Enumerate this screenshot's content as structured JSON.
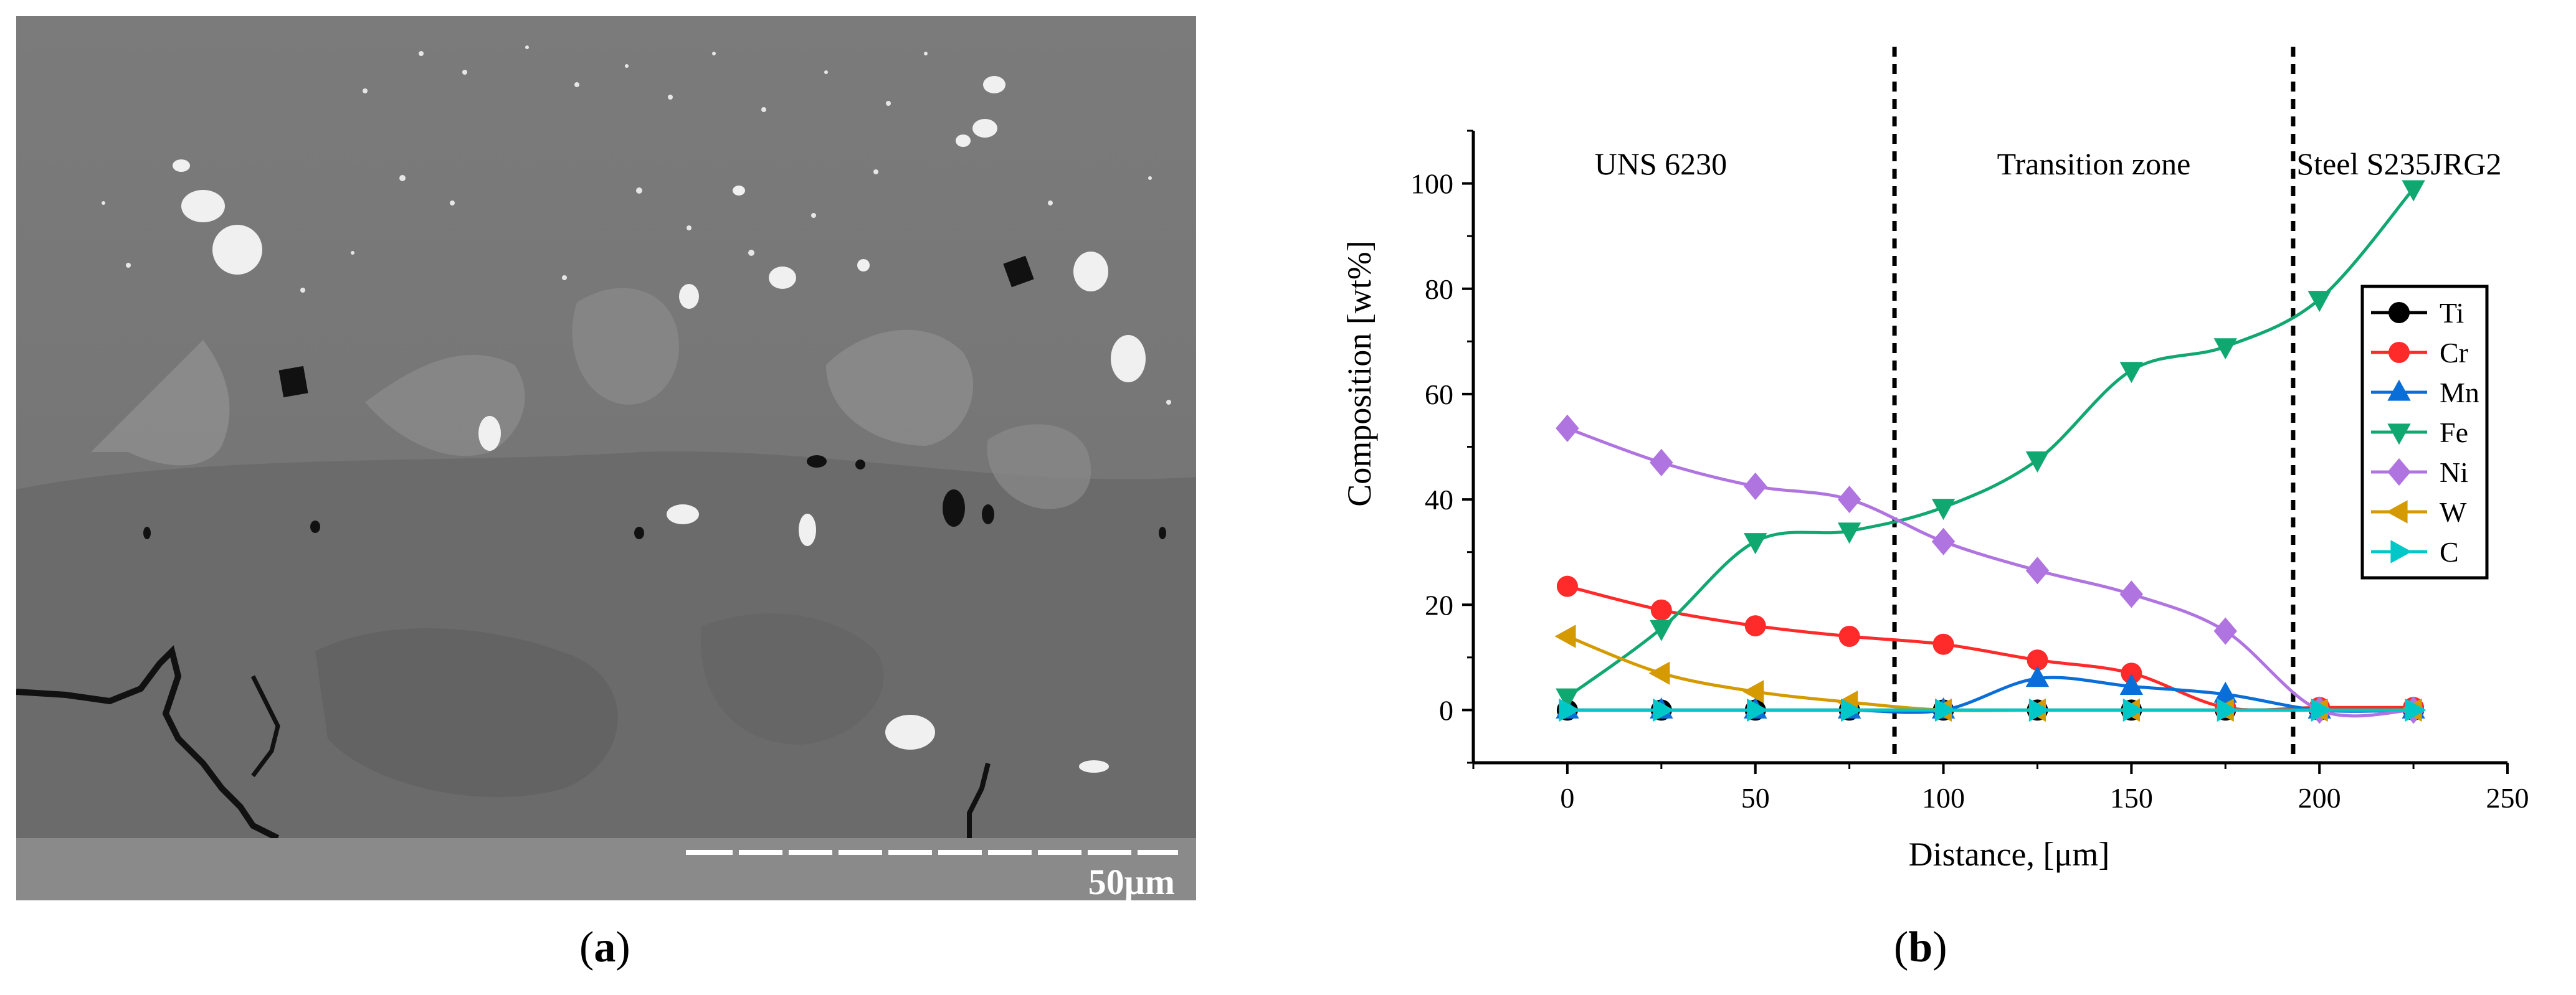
{
  "figure": {
    "panel_a_label": "a",
    "panel_b_label": "b"
  },
  "micrograph": {
    "scale_bar_label": "50μm",
    "description_colors": {
      "background": "#7a7a7a",
      "lower_zone": "#6c6c6c",
      "bar_strip": "#8c8c8c",
      "particles": "#f2f2f2",
      "pores": "#111111"
    }
  },
  "chart_data": {
    "type": "line",
    "xlabel": "Distance, [μm]",
    "ylabel": "Composition [wt%]",
    "xlim": [
      -25,
      250
    ],
    "ylim": [
      -10,
      110
    ],
    "xticks": [
      0,
      50,
      100,
      150,
      200,
      250
    ],
    "yticks": [
      0,
      20,
      40,
      60,
      80,
      100
    ],
    "zone_boundaries": [
      87,
      193
    ],
    "annotations": [
      "UNS 6230",
      "Transition zone",
      "Steel S235JRG2"
    ],
    "legend_position": "right",
    "x": [
      0,
      25,
      50,
      75,
      100,
      125,
      150,
      175,
      200,
      225
    ],
    "series": [
      {
        "name": "Ti",
        "color": "#000000",
        "marker": "circle",
        "values": [
          0,
          0,
          0,
          0,
          0,
          0,
          0,
          0,
          0,
          0
        ]
      },
      {
        "name": "Cr",
        "color": "#ff2a2a",
        "marker": "circle",
        "values": [
          23.5,
          19,
          16,
          14,
          12.5,
          9.5,
          7,
          0.5,
          0.5,
          0.5
        ]
      },
      {
        "name": "Mn",
        "color": "#0a6ed8",
        "marker": "triangle-up",
        "values": [
          0,
          0,
          0,
          0,
          0,
          6,
          4.5,
          3,
          0,
          0
        ]
      },
      {
        "name": "Fe",
        "color": "#10a870",
        "marker": "triangle-down",
        "values": [
          2.5,
          15.5,
          32,
          34,
          38.5,
          47.5,
          64.5,
          69,
          78,
          99
        ]
      },
      {
        "name": "Ni",
        "color": "#b074e0",
        "marker": "diamond",
        "values": [
          53.5,
          47,
          42.5,
          40,
          32,
          26.5,
          22,
          15,
          0,
          0
        ]
      },
      {
        "name": "W",
        "color": "#d49a00",
        "marker": "triangle-left",
        "values": [
          14,
          7,
          3.5,
          1.5,
          0,
          0,
          0,
          0,
          0,
          0
        ]
      },
      {
        "name": "C",
        "color": "#00c8c8",
        "marker": "triangle-right",
        "values": [
          0,
          0,
          0,
          0,
          0,
          0,
          0,
          0,
          0,
          0
        ]
      }
    ]
  }
}
